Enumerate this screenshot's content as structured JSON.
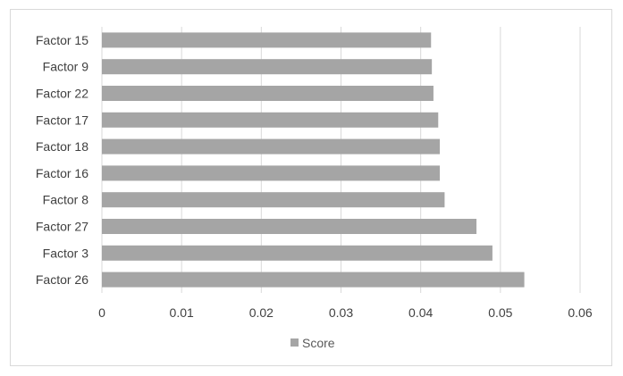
{
  "chart_data": {
    "type": "bar",
    "orientation": "horizontal",
    "categories": [
      "Factor 15",
      "Factor 9",
      "Factor 22",
      "Factor 17",
      "Factor 18",
      "Factor 16",
      "Factor 8",
      "Factor 27",
      "Factor 3",
      "Factor 26"
    ],
    "series": [
      {
        "name": "Score",
        "values": [
          0.0413,
          0.0414,
          0.0416,
          0.0422,
          0.0424,
          0.0424,
          0.043,
          0.047,
          0.049,
          0.053
        ],
        "color": "#a5a5a5"
      }
    ],
    "x_ticks": [
      "0",
      "0.01",
      "0.02",
      "0.03",
      "0.04",
      "0.05",
      "0.06"
    ],
    "xlim": [
      0,
      0.06
    ],
    "title": "",
    "xlabel": "",
    "ylabel": "",
    "grid": "vertical",
    "legend_position": "bottom",
    "colors": {
      "bar": "#a5a5a5",
      "grid": "#d9d9d9",
      "text": "#404040"
    }
  }
}
